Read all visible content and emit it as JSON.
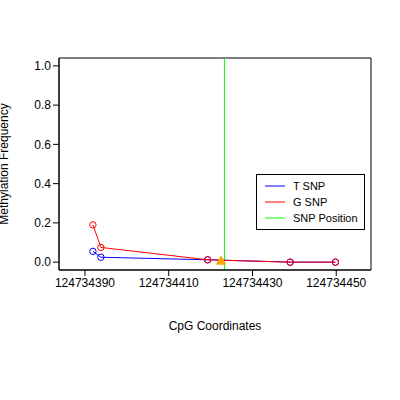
{
  "chart_data": {
    "type": "scatter",
    "x_label": "CpG Coordinates",
    "y_label": "Methylation Frequency",
    "xlim": [
      124734383.8,
      124734458.3
    ],
    "xticks": [
      124734390,
      124734410,
      124734430,
      124734450
    ],
    "ylim": [
      -0.04,
      1.04
    ],
    "yticks": [
      {
        "value": 0,
        "label": "0.0"
      },
      {
        "value": 0.2,
        "label": "0.2"
      },
      {
        "value": 0.4,
        "label": "0.4"
      },
      {
        "value": 0.6,
        "label": "0.6"
      },
      {
        "value": 0.8,
        "label": "0.8"
      },
      {
        "value": 1,
        "label": "1.0"
      }
    ],
    "series": [
      {
        "name": "T SNP",
        "color": "#0000ff",
        "marker": "circle",
        "line_style": "solid",
        "x": [
          124734391.9,
          124734393.8,
          124734419.3,
          124734439,
          124734449.8
        ],
        "values": [
          0.055,
          0.025,
          0.012,
          0,
          0
        ]
      },
      {
        "name": "G SNP",
        "color": "#ff0000",
        "marker": "circle",
        "line_style": "solid",
        "x": [
          124734391.9,
          124734393.8,
          124734419.3,
          124734439,
          124734449.8
        ],
        "values": [
          0.19,
          0.075,
          0.012,
          0,
          0
        ]
      }
    ],
    "snp_line": {
      "name": "SNP Position",
      "x": 124734423.3,
      "color": "#00ff00"
    },
    "snp_marker": {
      "x": 124734422.5,
      "y": 0.005,
      "color": "orange",
      "marker": "triangle"
    },
    "legend": "right"
  }
}
